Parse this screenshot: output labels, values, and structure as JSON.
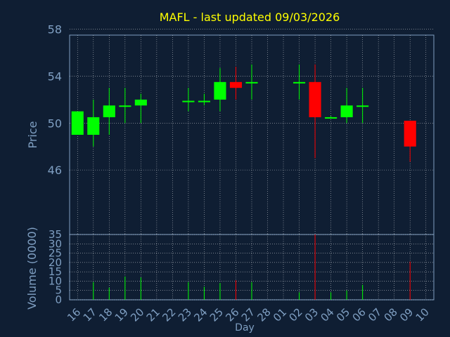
{
  "title": "MAFL - last updated 09/03/2026",
  "colors": {
    "background": "#0f1e33",
    "axis": "#7f9fc2",
    "title": "#ffff00",
    "grid": "#ffffff",
    "up": "#00ff00",
    "down": "#ff0000",
    "label": "#7f9fc2"
  },
  "chart_data": [
    {
      "type": "candlestick",
      "ylabel": "Price",
      "ylim": [
        40.5,
        57.5
      ],
      "yticks": [
        46,
        50,
        54,
        58
      ],
      "grid": true,
      "x_ticklabels": [
        "16",
        "17",
        "18",
        "19",
        "20",
        "21",
        "22",
        "23",
        "24",
        "25",
        "26",
        "27",
        "28",
        "01",
        "02",
        "03",
        "04",
        "05",
        "06",
        "07",
        "08",
        "09",
        "10"
      ],
      "candles": [
        {
          "x": "16",
          "open": 49.0,
          "close": 51.0,
          "high": 51.0,
          "low": 49.0
        },
        {
          "x": "17",
          "open": 49.0,
          "close": 50.5,
          "high": 52.0,
          "low": 48.0
        },
        {
          "x": "18",
          "open": 50.5,
          "close": 51.5,
          "high": 53.0,
          "low": 49.0
        },
        {
          "x": "19",
          "open": 51.5,
          "close": 51.5,
          "high": 53.0,
          "low": 50.0
        },
        {
          "x": "20",
          "open": 51.5,
          "close": 52.0,
          "high": 52.5,
          "low": 50.0
        },
        {
          "x": "23",
          "open": 51.9,
          "close": 51.9,
          "high": 53.0,
          "low": 51.0
        },
        {
          "x": "24",
          "open": 51.9,
          "close": 51.9,
          "high": 52.5,
          "low": 51.5
        },
        {
          "x": "25",
          "open": 52.0,
          "close": 53.5,
          "high": 54.7,
          "low": 51.0
        },
        {
          "x": "26",
          "open": 53.5,
          "close": 53.0,
          "high": 54.8,
          "low": 52.0
        },
        {
          "x": "27",
          "open": 53.5,
          "close": 53.5,
          "high": 55.0,
          "low": 52.0
        },
        {
          "x": "02",
          "open": 53.5,
          "close": 53.5,
          "high": 55.0,
          "low": 52.0
        },
        {
          "x": "03",
          "open": 53.5,
          "close": 50.5,
          "high": 55.0,
          "low": 47.0
        },
        {
          "x": "04",
          "open": 50.5,
          "close": 50.5,
          "high": 50.6,
          "low": 50.4
        },
        {
          "x": "05",
          "open": 50.5,
          "close": 51.5,
          "high": 53.0,
          "low": 50.0
        },
        {
          "x": "06",
          "open": 51.5,
          "close": 51.5,
          "high": 53.0,
          "low": 50.0
        },
        {
          "x": "09",
          "open": 50.2,
          "close": 48.0,
          "high": 50.2,
          "low": 46.7
        }
      ]
    },
    {
      "type": "bar",
      "xlabel": "Day",
      "ylabel": "Volume (0000)",
      "ylim": [
        0,
        35
      ],
      "ytick_labels": [
        "0",
        "5",
        "10",
        "15",
        "20",
        "25",
        "30",
        "35"
      ],
      "grid": true,
      "bars": [
        {
          "x": "17",
          "value": 9.5,
          "direction": "up"
        },
        {
          "x": "18",
          "value": 6.5,
          "direction": "up"
        },
        {
          "x": "19",
          "value": 12.5,
          "direction": "up"
        },
        {
          "x": "20",
          "value": 12.0,
          "direction": "up"
        },
        {
          "x": "23",
          "value": 9.5,
          "direction": "up"
        },
        {
          "x": "24",
          "value": 7.0,
          "direction": "up"
        },
        {
          "x": "25",
          "value": 9.0,
          "direction": "up"
        },
        {
          "x": "26",
          "value": 10.5,
          "direction": "down"
        },
        {
          "x": "27",
          "value": 9.5,
          "direction": "up"
        },
        {
          "x": "02",
          "value": 4.0,
          "direction": "up"
        },
        {
          "x": "03",
          "value": 35.0,
          "direction": "down"
        },
        {
          "x": "04",
          "value": 4.0,
          "direction": "up"
        },
        {
          "x": "05",
          "value": 5.0,
          "direction": "up"
        },
        {
          "x": "06",
          "value": 8.0,
          "direction": "up"
        },
        {
          "x": "09",
          "value": 20.5,
          "direction": "down"
        }
      ]
    }
  ]
}
